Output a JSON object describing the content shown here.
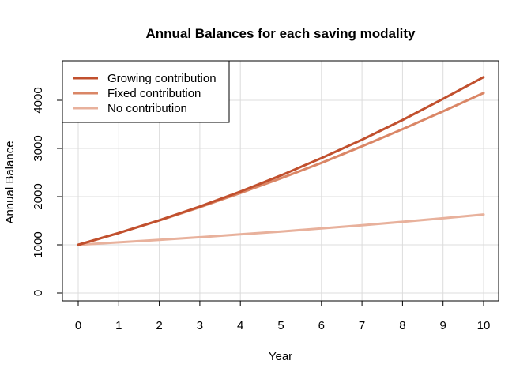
{
  "chart_data": {
    "type": "line",
    "title": "Annual Balances for each saving modality",
    "xlabel": "Year",
    "ylabel": "Annual Balance",
    "x": [
      0,
      1,
      2,
      3,
      4,
      5,
      6,
      7,
      8,
      9,
      10
    ],
    "xlim": [
      0,
      10
    ],
    "ylim": [
      0,
      4500
    ],
    "x_ticks": [
      "0",
      "1",
      "2",
      "3",
      "4",
      "5",
      "6",
      "7",
      "8",
      "9",
      "10"
    ],
    "y_ticks": [
      "0",
      "1000",
      "2000",
      "3000",
      "4000"
    ],
    "grid": true,
    "legend_position": "top-left",
    "series": [
      {
        "name": "Growing contribution",
        "color": "#C1502E",
        "values": [
          1000,
          1245,
          1510,
          1795,
          2105,
          2440,
          2800,
          3180,
          3590,
          4030,
          4480
        ]
      },
      {
        "name": "Fixed contribution",
        "color": "#DA8666",
        "values": [
          1000,
          1245,
          1505,
          1780,
          2075,
          2380,
          2700,
          3045,
          3400,
          3770,
          4150
        ]
      },
      {
        "name": "No contribution",
        "color": "#E8B19C",
        "values": [
          1000,
          1050,
          1103,
          1158,
          1216,
          1276,
          1340,
          1407,
          1477,
          1551,
          1629
        ]
      }
    ]
  }
}
